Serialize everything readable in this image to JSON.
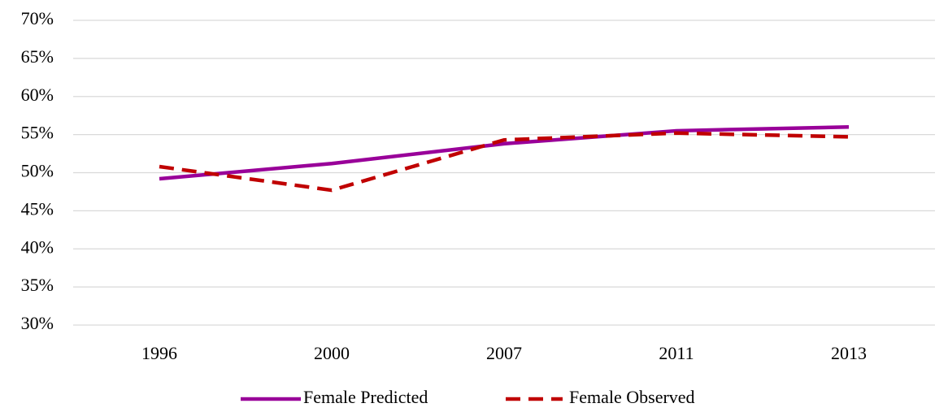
{
  "chart_data": {
    "type": "line",
    "categories": [
      "1996",
      "2000",
      "2007",
      "2011",
      "2013"
    ],
    "series": [
      {
        "name": "Female Predicted",
        "color": "#990099",
        "dash": false,
        "values": [
          49.2,
          51.2,
          53.8,
          55.5,
          56.0
        ]
      },
      {
        "name": "Female Observed",
        "color": "#c00000",
        "dash": true,
        "values": [
          50.8,
          47.7,
          54.3,
          55.2,
          54.7
        ]
      }
    ],
    "ylim": [
      30,
      70
    ],
    "yticks": [
      {
        "value": 30,
        "label": "30%"
      },
      {
        "value": 35,
        "label": "35%"
      },
      {
        "value": 40,
        "label": "40%"
      },
      {
        "value": 45,
        "label": "45%"
      },
      {
        "value": 50,
        "label": "50%"
      },
      {
        "value": 55,
        "label": "55%"
      },
      {
        "value": 60,
        "label": "60%"
      },
      {
        "value": 65,
        "label": "65%"
      },
      {
        "value": 70,
        "label": "70%"
      }
    ],
    "grid": true,
    "legend": "bottom"
  }
}
